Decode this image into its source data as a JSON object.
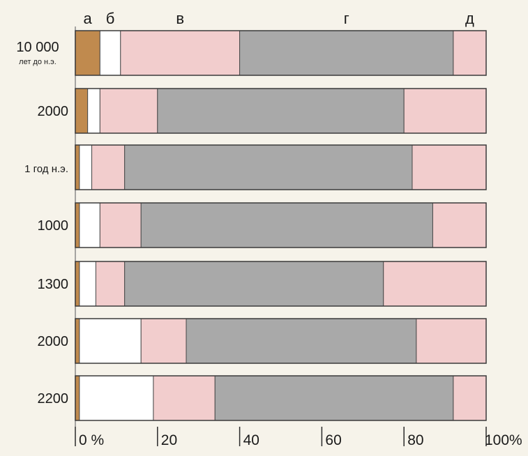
{
  "chart_data": {
    "type": "bar",
    "stacked": true,
    "orientation": "horizontal",
    "xlim": [
      0,
      100
    ],
    "x_ticks": [
      0,
      20,
      40,
      60,
      80,
      100
    ],
    "x_tick_labels": [
      "0 %",
      "20",
      "40",
      "60",
      "80",
      "100%"
    ],
    "categories": [
      {
        "label": "10 000",
        "sublabel": "лет до н.э."
      },
      {
        "label": "2000",
        "sublabel": ""
      },
      {
        "label": "1 год н.э.",
        "sublabel": ""
      },
      {
        "label": "1000",
        "sublabel": ""
      },
      {
        "label": "1300",
        "sublabel": ""
      },
      {
        "label": "2000",
        "sublabel": ""
      },
      {
        "label": "2200",
        "sublabel": ""
      }
    ],
    "series": [
      {
        "name": "а",
        "color": "#c08a4e",
        "values": [
          6,
          3,
          1,
          1,
          1,
          1,
          1
        ]
      },
      {
        "name": "б",
        "color": "#ffffff",
        "values": [
          5,
          3,
          3,
          5,
          4,
          15,
          18
        ]
      },
      {
        "name": "в",
        "color": "#f2cdcd",
        "values": [
          29,
          14,
          8,
          10,
          7,
          11,
          15
        ]
      },
      {
        "name": "г",
        "color": "#a9a9a9",
        "values": [
          52,
          60,
          70,
          71,
          63,
          56,
          58
        ]
      },
      {
        "name": "д",
        "color": "#f2cdcd",
        "values": [
          8,
          20,
          18,
          13,
          25,
          17,
          8
        ]
      }
    ],
    "legend_placement": "top",
    "grid": false
  }
}
